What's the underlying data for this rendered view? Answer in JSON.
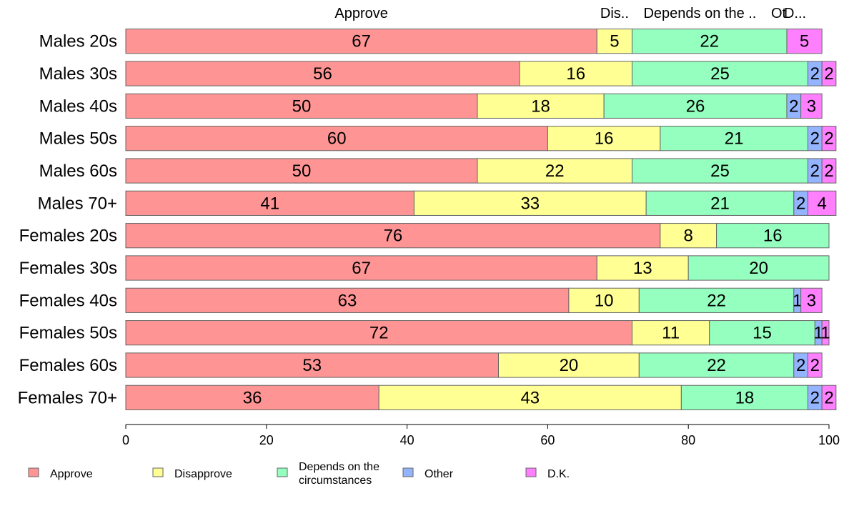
{
  "chart_data": {
    "type": "bar",
    "orientation": "horizontal",
    "stacked": true,
    "categories": [
      "Males 20s",
      "Males 30s",
      "Males 40s",
      "Males 50s",
      "Males 60s",
      "Males 70+",
      "Females 20s",
      "Females 30s",
      "Females 40s",
      "Females 50s",
      "Females 60s",
      "Females 70+"
    ],
    "series": [
      {
        "name": "Approve",
        "color": "#ff9494",
        "values": [
          67,
          56,
          50,
          60,
          50,
          41,
          76,
          67,
          63,
          72,
          53,
          36
        ]
      },
      {
        "name": "Disapprove",
        "color": "#ffff94",
        "values": [
          5,
          16,
          18,
          16,
          22,
          33,
          8,
          13,
          10,
          11,
          20,
          43
        ]
      },
      {
        "name": "Depends on the circumstances",
        "color": "#94ffbf",
        "values": [
          22,
          25,
          26,
          21,
          25,
          21,
          16,
          20,
          22,
          15,
          22,
          18
        ]
      },
      {
        "name": "Other",
        "color": "#94b4ff",
        "values": [
          0,
          2,
          2,
          2,
          2,
          2,
          0,
          0,
          1,
          1,
          2,
          2
        ]
      },
      {
        "name": "D.K.",
        "color": "#ff80ff",
        "values": [
          5,
          2,
          3,
          2,
          2,
          4,
          0,
          0,
          3,
          1,
          2,
          2
        ]
      }
    ],
    "top_labels": [
      "Approve",
      "Dis..",
      "Depends on the ..",
      "Ot",
      "D..."
    ],
    "legend_lines": [
      [
        "Approve"
      ],
      [
        "Disapprove"
      ],
      [
        "Depends on the",
        "circumstances"
      ],
      [
        "Other"
      ],
      [
        "D.K."
      ]
    ],
    "xlim": [
      0,
      100
    ],
    "xticks": [
      0,
      20,
      40,
      60,
      80,
      100
    ],
    "grid": false,
    "legend_position": "bottom"
  }
}
